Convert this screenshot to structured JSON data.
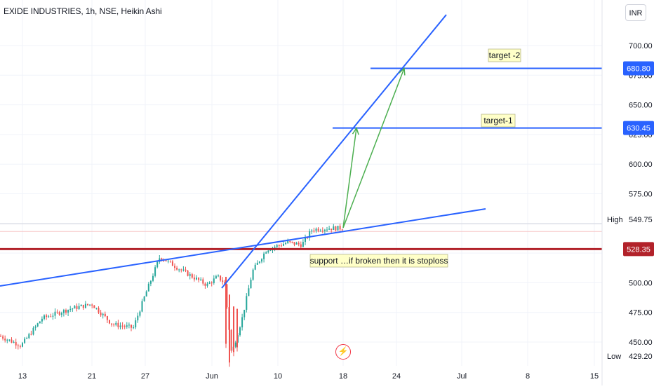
{
  "header": {
    "title": "EXIDE INDUSTRIES, 1h, NSE, Heikin Ashi",
    "currency": "INR"
  },
  "colors": {
    "up": "#26a69a",
    "down": "#ef5350",
    "trendline": "#2962ff",
    "support_line": "#b2222a",
    "target_arrow": "#4caf50",
    "axis_text": "#131722"
  },
  "chart_data": {
    "type": "candlestick",
    "style": "Heikin Ashi",
    "y_axis": {
      "range": [
        429.2,
        713
      ],
      "ticks": [
        "450.00",
        "475.00",
        "500.00",
        "525.00",
        "550.00",
        "575.00",
        "600.00",
        "625.00",
        "650.00",
        "675.00",
        "700.00"
      ]
    },
    "x_axis": {
      "ticks": [
        "13",
        "21",
        "27",
        "Jun",
        "10",
        "18",
        "24",
        "Jul",
        "8",
        "15"
      ]
    },
    "price_labels": {
      "high_label": "High",
      "high_value": "549.75",
      "low_label": "Low",
      "low_value": "429.20",
      "target2": "680.80",
      "target1": "630.45",
      "support": "528.35"
    },
    "annotations": {
      "target2": "target -2",
      "target1": "target-1",
      "support": "support …if broken then it is stoploss"
    },
    "candle_segments": [
      [
        "13",
        445,
        452,
        470,
        480
      ],
      [
        "21",
        468,
        480,
        462,
        463
      ],
      [
        "27",
        463,
        460,
        515,
        522
      ],
      [
        "Jun",
        522,
        510,
        500,
        505
      ],
      [
        "Jun",
        505,
        440,
        530,
        532
      ],
      [
        "10",
        532,
        534,
        532,
        530
      ],
      [
        "18",
        530,
        545,
        547,
        546
      ]
    ]
  }
}
